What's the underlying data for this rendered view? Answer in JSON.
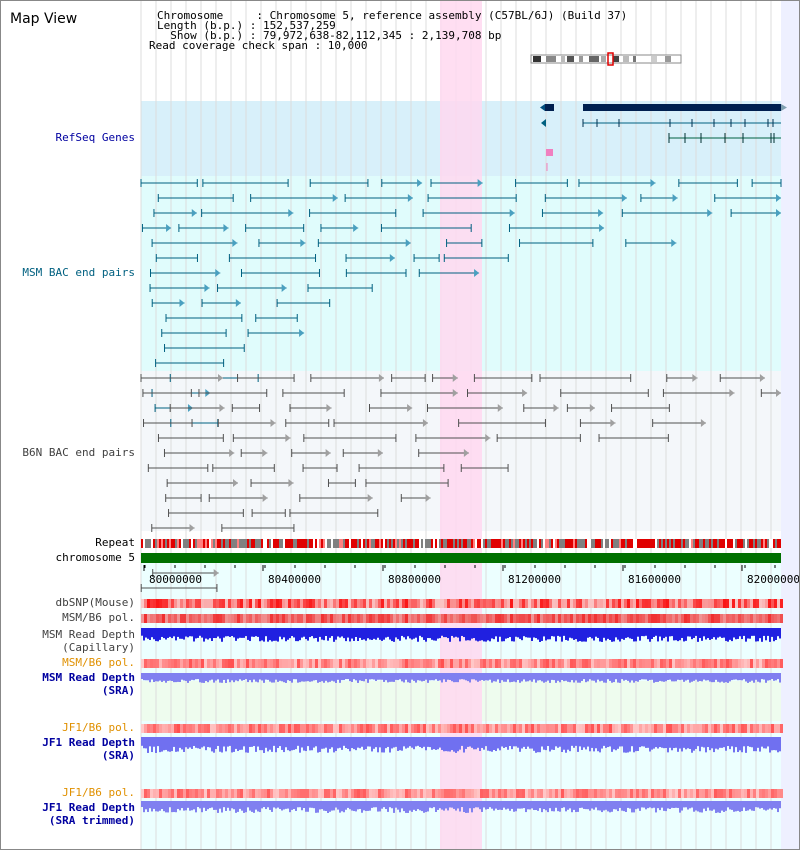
{
  "header": {
    "view_title": "Map View",
    "chromosome_line": "Chromosome     : Chromosome 5, reference assembly (C57BL/6J) (Build 37)",
    "length_line": "Length (b.p.) : 152,537,259",
    "show_line": "  Show (b.p.) : 79,972,638-82,112,345 : 2,139,708 bp",
    "coverage_line": "Read coverage check span : 10,000"
  },
  "tracks": {
    "refseq_label": "RefSeq Genes",
    "msm_bac_label": "MSM BAC end pairs",
    "b6n_bac_label": "B6N BAC end pairs",
    "repeat_label": "Repeat",
    "chromosome_label": "chromosome 5",
    "dbsnp_label": "dbSNP(Mouse)",
    "msm_b6_pol_label_1": "MSM/B6 pol.",
    "msm_read_depth_cap_label": "MSM Read Depth",
    "msm_read_depth_cap_sub": "(Capillary)",
    "msm_b6_pol_label_2": "MSM/B6 pol.",
    "msm_read_depth_sra_label": "MSM Read Depth",
    "msm_read_depth_sra_sub": "(SRA)",
    "jf1_b6_pol_label_1": "JF1/B6 pol.",
    "jf1_read_depth_label": "JF1 Read Depth",
    "jf1_read_depth_sub": "(SRA)",
    "jf1_b6_pol_label_2": "JF1/B6 pol.",
    "jf1_read_depth_trim_label": "JF1 Read Depth",
    "jf1_read_depth_trim_sub": "(SRA trimmed)"
  },
  "ruler": {
    "ticks": [
      "80000000",
      "80400000",
      "80800000",
      "81200000",
      "81600000",
      "82000000"
    ]
  },
  "colors": {
    "label_blue": "#0000a0",
    "label_teal": "#006080",
    "label_gray": "#404040",
    "label_orange": "#e09000",
    "highlight": "#ffd8f0",
    "refseq_bg": "#d8f0fa",
    "msm_bg": "#e0fcfc",
    "b6n_bg": "#f4f7fa",
    "chromosome_green": "#007000"
  }
}
